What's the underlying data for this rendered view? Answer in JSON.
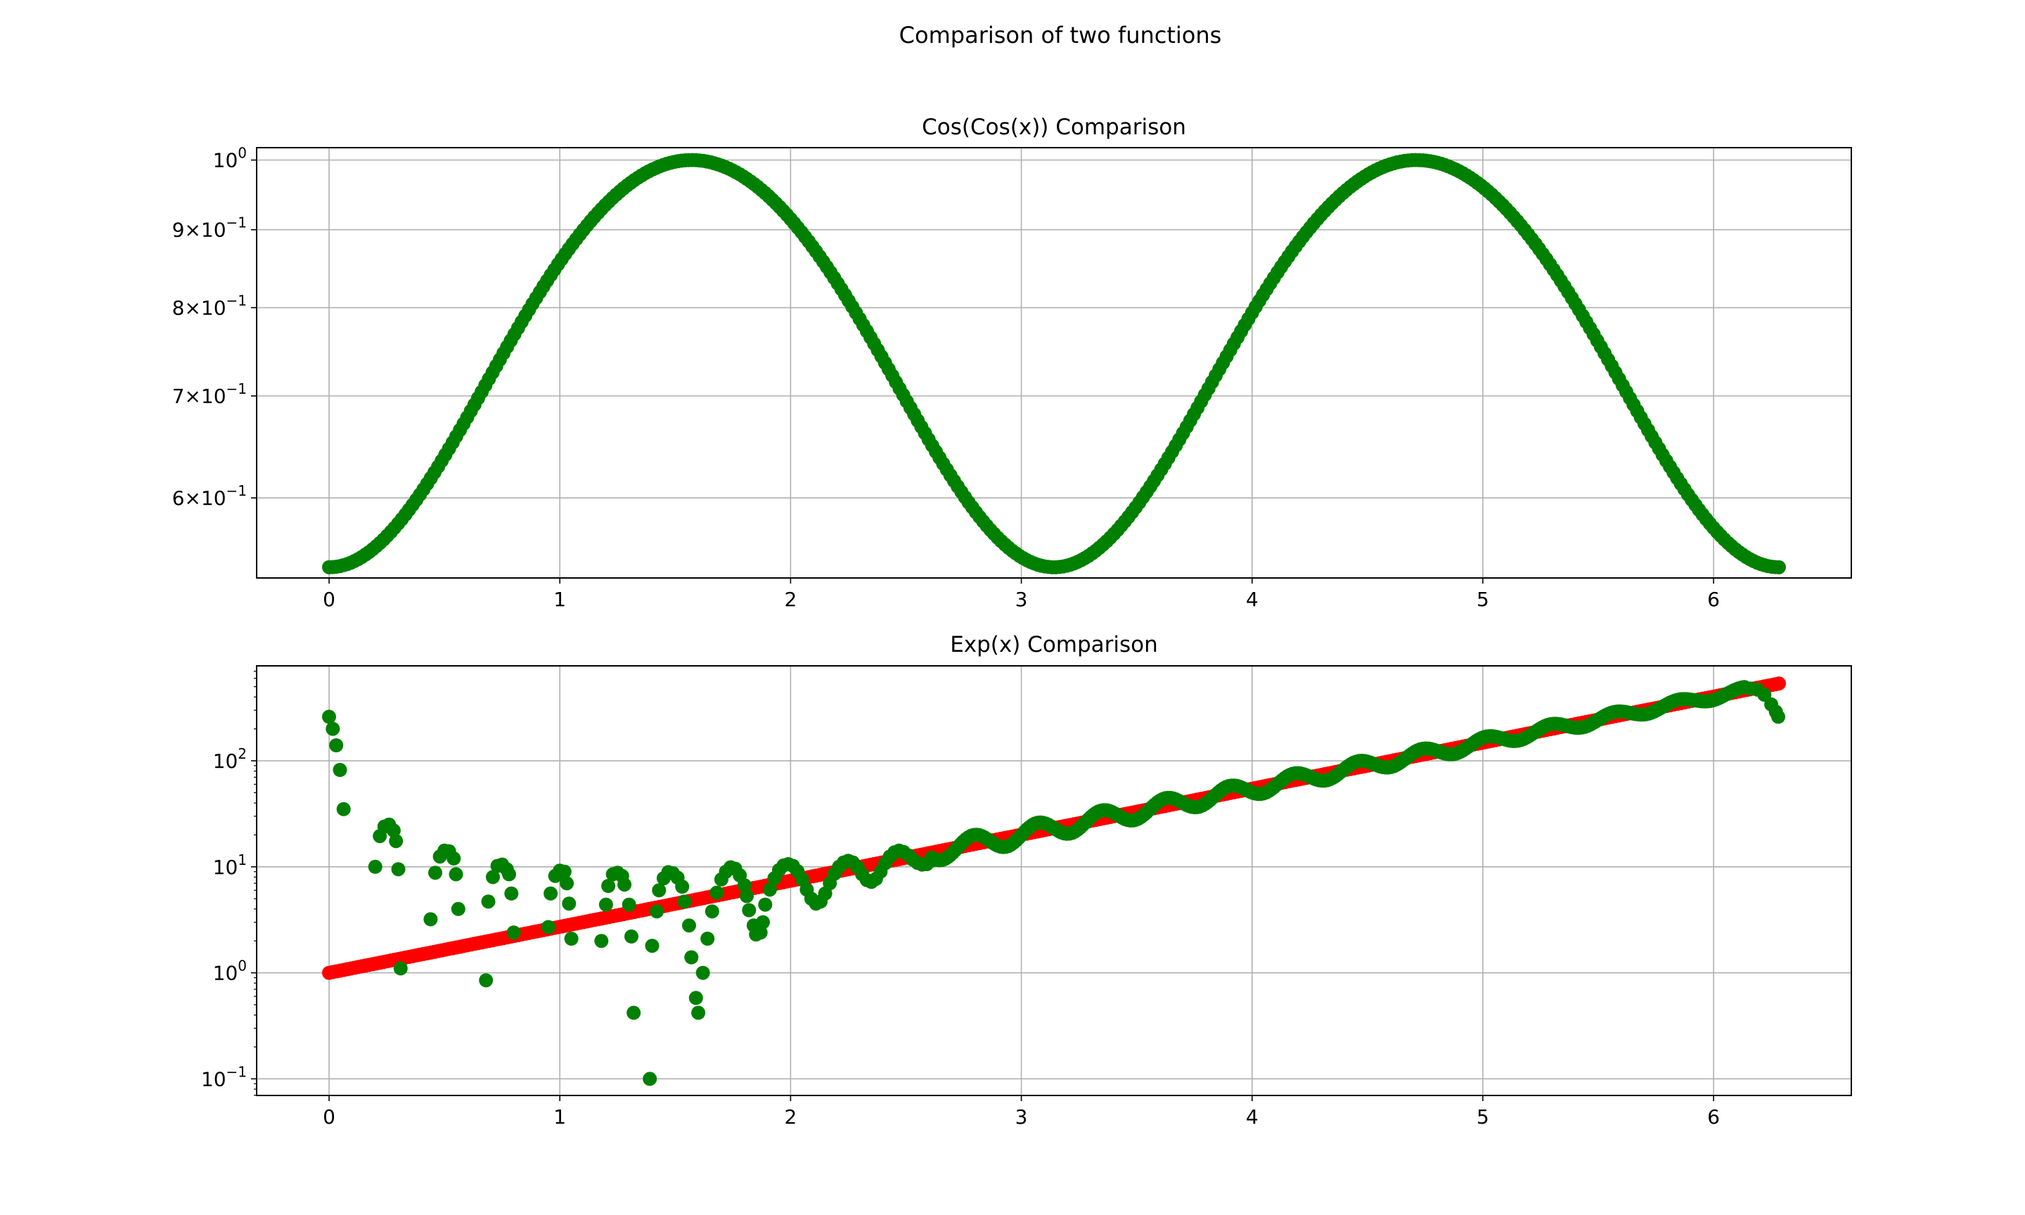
{
  "figure": {
    "suptitle": "Comparison of two functions",
    "colors": {
      "green": "#008000",
      "red": "#ff0000",
      "grid": "#b0b0b0"
    }
  },
  "chart_data": [
    {
      "type": "scatter",
      "title": "Cos(Cos(x)) Comparison",
      "xlabel": "",
      "ylabel": "",
      "yscale": "log",
      "xlim": [
        -0.314,
        6.597
      ],
      "ylim": [
        0.5316,
        1.0189
      ],
      "grid": true,
      "x_ticks": [
        0,
        1,
        2,
        3,
        4,
        5,
        6
      ],
      "x_tick_labels": [
        "0",
        "1",
        "2",
        "3",
        "4",
        "5",
        "6"
      ],
      "y_ticks": [
        0.6,
        0.7,
        0.8,
        0.9,
        1.0
      ],
      "y_tick_labels": [
        {
          "mant": "6",
          "exp": "−1"
        },
        {
          "mant": "7",
          "exp": "−1"
        },
        {
          "mant": "8",
          "exp": "−1"
        },
        {
          "mant": "9",
          "exp": "−1"
        },
        {
          "mant": "",
          "exp": "0"
        }
      ],
      "x_range": [
        0,
        6.2832
      ],
      "series": [
        {
          "marker": "circle",
          "color": "#008000",
          "function": "cos(cos(x))",
          "x_start": 0,
          "x_end": 6.2832,
          "point_count": 400,
          "y_min": 0.5403,
          "y_max": 1.0
        }
      ]
    },
    {
      "type": "scatter",
      "title": "Exp(x) Comparison",
      "xlabel": "",
      "ylabel": "",
      "yscale": "log",
      "xlim": [
        -0.314,
        6.597
      ],
      "ylim": [
        0.0697,
        786
      ],
      "grid": true,
      "x_ticks": [
        0,
        1,
        2,
        3,
        4,
        5,
        6
      ],
      "x_tick_labels": [
        "0",
        "1",
        "2",
        "3",
        "4",
        "5",
        "6"
      ],
      "y_ticks": [
        0.1,
        1,
        10,
        100
      ],
      "y_tick_labels": [
        {
          "mant": "",
          "exp": "−1"
        },
        {
          "mant": "",
          "exp": "0"
        },
        {
          "mant": "",
          "exp": "1"
        },
        {
          "mant": "",
          "exp": "2"
        }
      ],
      "series": [
        {
          "marker": "circle",
          "color": "#ff0000",
          "function": "exp(x)",
          "x_start": 0,
          "x_end": 6.2832,
          "point_count": 400,
          "y_min": 1.0,
          "y_max": 535.5
        },
        {
          "marker": "circle",
          "color": "#008000",
          "function": "Fourier approximation of exp(x)",
          "points": [
            [
              0.0,
              260
            ],
            [
              0.016,
              200
            ],
            [
              0.031,
              140
            ],
            [
              0.047,
              82
            ],
            [
              0.063,
              35
            ],
            [
              0.2,
              10
            ],
            [
              0.22,
              19.5
            ],
            [
              0.24,
              24
            ],
            [
              0.26,
              25
            ],
            [
              0.28,
              22
            ],
            [
              0.29,
              17.5
            ],
            [
              0.3,
              9.5
            ],
            [
              0.31,
              1.1
            ],
            [
              0.44,
              3.2
            ],
            [
              0.46,
              8.8
            ],
            [
              0.48,
              12.5
            ],
            [
              0.5,
              14.2
            ],
            [
              0.52,
              14
            ],
            [
              0.54,
              12
            ],
            [
              0.55,
              8.5
            ],
            [
              0.56,
              4
            ],
            [
              0.68,
              0.85
            ],
            [
              0.69,
              4.7
            ],
            [
              0.71,
              8
            ],
            [
              0.73,
              10.2
            ],
            [
              0.75,
              10.5
            ],
            [
              0.77,
              9.5
            ],
            [
              0.78,
              8.5
            ],
            [
              0.79,
              5.6
            ],
            [
              0.8,
              2.4
            ],
            [
              0.95,
              2.7
            ],
            [
              0.96,
              5.6
            ],
            [
              0.98,
              8.2
            ],
            [
              1.0,
              9.2
            ],
            [
              1.02,
              9
            ],
            [
              1.03,
              7
            ],
            [
              1.04,
              4.5
            ],
            [
              1.05,
              2.1
            ],
            [
              1.18,
              2
            ],
            [
              1.2,
              4.4
            ],
            [
              1.21,
              6.6
            ],
            [
              1.23,
              8.5
            ],
            [
              1.25,
              8.8
            ],
            [
              1.27,
              8.2
            ],
            [
              1.28,
              6.8
            ],
            [
              1.3,
              4.4
            ],
            [
              1.31,
              2.2
            ],
            [
              1.32,
              0.42
            ],
            [
              1.39,
              0.1
            ],
            [
              1.4,
              1.8
            ],
            [
              1.42,
              3.8
            ],
            [
              1.43,
              6
            ],
            [
              1.45,
              7.8
            ],
            [
              1.47,
              8.9
            ],
            [
              1.49,
              8.7
            ],
            [
              1.51,
              7.9
            ],
            [
              1.53,
              6.5
            ],
            [
              1.54,
              4.7
            ],
            [
              1.56,
              2.8
            ],
            [
              1.57,
              1.4
            ],
            [
              1.59,
              0.58
            ],
            [
              1.6,
              0.42
            ],
            [
              1.62,
              1.0
            ],
            [
              1.64,
              2.1
            ],
            [
              1.66,
              3.8
            ],
            [
              1.68,
              5.7
            ],
            [
              1.7,
              7.6
            ],
            [
              1.72,
              9.0
            ],
            [
              1.74,
              9.9
            ],
            [
              1.76,
              9.6
            ],
            [
              1.78,
              8.3
            ],
            [
              1.8,
              6.7
            ],
            [
              1.81,
              5.3
            ],
            [
              1.82,
              3.9
            ],
            [
              1.84,
              2.8
            ],
            [
              1.85,
              2.3
            ],
            [
              1.87,
              2.4
            ],
            [
              1.88,
              3.0
            ],
            [
              1.89,
              4.4
            ],
            [
              1.91,
              6.1
            ],
            [
              1.93,
              7.8
            ],
            [
              1.95,
              9.3
            ],
            [
              1.97,
              10.3
            ],
            [
              1.99,
              10.6
            ],
            [
              2.01,
              10.2
            ],
            [
              2.03,
              9.1
            ],
            [
              2.05,
              7.6
            ],
            [
              2.07,
              6.1
            ],
            [
              2.09,
              5.0
            ],
            [
              2.11,
              4.5
            ],
            [
              2.13,
              4.7
            ],
            [
              2.15,
              5.6
            ],
            [
              2.17,
              7.0
            ],
            [
              2.19,
              8.6
            ],
            [
              2.21,
              10.0
            ],
            [
              2.23,
              11.0
            ],
            [
              2.25,
              11.4
            ],
            [
              2.27,
              11.0
            ],
            [
              2.29,
              9.9
            ],
            [
              2.31,
              8.5
            ],
            [
              2.33,
              7.5
            ],
            [
              2.35,
              7.2
            ],
            [
              2.37,
              7.7
            ],
            [
              2.39,
              9.0
            ],
            [
              2.41,
              10.8
            ],
            [
              2.43,
              12.5
            ],
            [
              2.45,
              13.7
            ],
            [
              2.47,
              14.2
            ],
            [
              2.49,
              13.8
            ],
            [
              2.51,
              12.8
            ],
            [
              2.53,
              11.7
            ],
            [
              2.55,
              10.9
            ],
            [
              2.57,
              10.5
            ],
            [
              2.59,
              10.6
            ],
            [
              2.61,
              11.4
            ]
          ],
          "tail": {
            "x_start": 2.61,
            "x_end": 6.2832,
            "function": "exp(x)",
            "oscillation_log_amplitude_start": 0.09,
            "oscillation_log_amplitude_end": 0.03,
            "cycles_per_unit": 3.6,
            "end_points": [
              [
                6.16,
                480
              ],
              [
                6.19,
                470
              ],
              [
                6.22,
                420
              ],
              [
                6.25,
                340
              ],
              [
                6.27,
                290
              ],
              [
                6.28,
                260
              ]
            ]
          }
        }
      ]
    }
  ]
}
